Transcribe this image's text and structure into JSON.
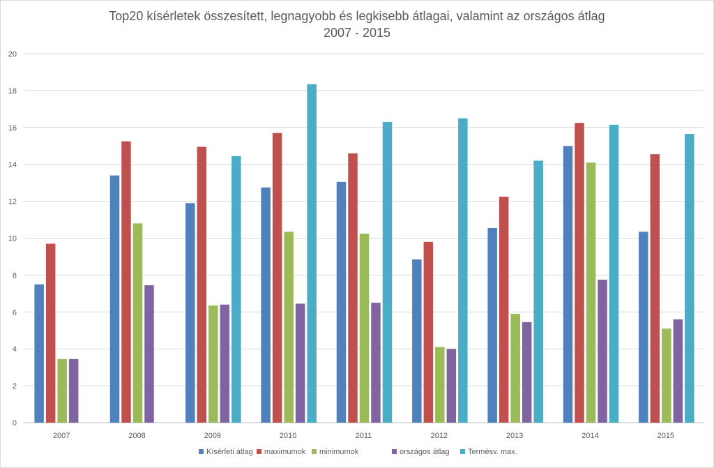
{
  "chart_data": {
    "type": "bar",
    "title_line1": "Top20 kísérletek összesített, legnagyobb és legkisebb átlagai, valamint az országos átlag",
    "title_line2": "2007 - 2015",
    "categories": [
      "2007",
      "2008",
      "2009",
      "2010",
      "2011",
      "2012",
      "2013",
      "2014",
      "2015"
    ],
    "ylim": [
      0,
      20
    ],
    "yticks": [
      0,
      2,
      4,
      6,
      8,
      10,
      12,
      14,
      16,
      18,
      20
    ],
    "grid": true,
    "legend_position": "bottom",
    "series": [
      {
        "name": "Kísérleti átlag",
        "color": "#4f81bd",
        "values": [
          7.5,
          13.4,
          11.9,
          12.75,
          13.05,
          8.85,
          10.55,
          15.0,
          10.35
        ]
      },
      {
        "name": "maximumok",
        "color": "#c0504d",
        "values": [
          9.7,
          15.25,
          14.95,
          15.7,
          14.6,
          9.8,
          12.25,
          16.25,
          14.55
        ]
      },
      {
        "name": "minimumok",
        "color": "#9bbb59",
        "values": [
          3.45,
          10.8,
          6.35,
          10.35,
          10.25,
          4.1,
          5.9,
          14.1,
          5.1
        ]
      },
      {
        "name": "országos átlag",
        "color": "#8064a2",
        "values": [
          3.45,
          7.45,
          6.4,
          6.45,
          6.5,
          4.0,
          5.45,
          7.75,
          5.6
        ]
      },
      {
        "name": "Termésv. max.",
        "color": "#4bacc6",
        "values": [
          null,
          null,
          14.45,
          18.35,
          16.3,
          16.5,
          14.2,
          16.15,
          15.65
        ]
      }
    ]
  }
}
